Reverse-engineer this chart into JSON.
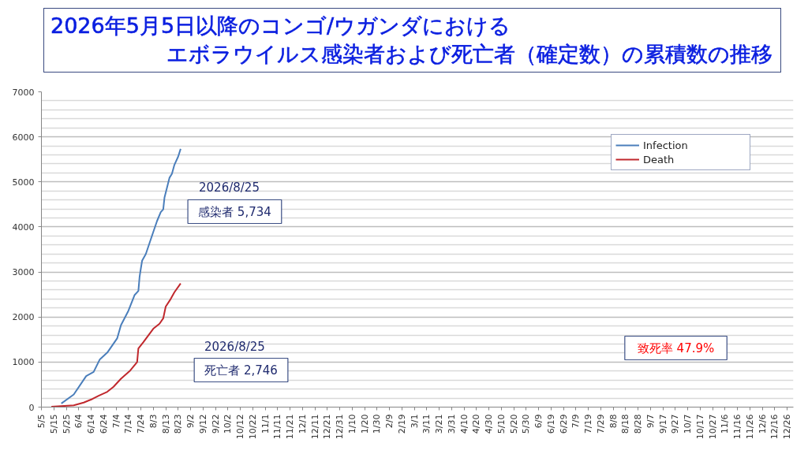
{
  "chart_data": {
    "type": "line",
    "title": "2026年5月5日以降のコンゴ/ウガンダにおけるエボラウイルス感染者および死亡者（確定数）の累積数の推移",
    "series": [
      {
        "name": "Infection",
        "color": "#4a7ebb",
        "x": [
          "2026-05-21",
          "2026-05-31",
          "2026-06-10",
          "2026-06-16",
          "2026-06-21",
          "2026-06-27",
          "2026-07-05",
          "2026-07-08",
          "2026-07-14",
          "2026-07-19",
          "2026-07-22",
          "2026-07-23",
          "2026-07-24",
          "2026-07-25",
          "2026-07-28",
          "2026-08-03",
          "2026-08-06",
          "2026-08-09",
          "2026-08-11",
          "2026-08-12",
          "2026-08-16",
          "2026-08-18",
          "2026-08-20",
          "2026-08-23",
          "2026-08-25"
        ],
        "values": [
          80,
          280,
          690,
          780,
          1060,
          1210,
          1530,
          1820,
          2140,
          2490,
          2580,
          2900,
          3080,
          3250,
          3400,
          3890,
          4130,
          4330,
          4390,
          4650,
          5090,
          5180,
          5380,
          5560,
          5734
        ]
      },
      {
        "name": "Death",
        "color": "#c0282d",
        "x": [
          "2026-05-13",
          "2026-05-31",
          "2026-06-08",
          "2026-06-15",
          "2026-06-20",
          "2026-06-27",
          "2026-07-02",
          "2026-07-08",
          "2026-07-15",
          "2026-07-21",
          "2026-07-22",
          "2026-07-26",
          "2026-08-03",
          "2026-08-08",
          "2026-08-11",
          "2026-08-13",
          "2026-08-17",
          "2026-08-20",
          "2026-08-25"
        ],
        "values": [
          10,
          40,
          100,
          180,
          250,
          340,
          450,
          630,
          800,
          1000,
          1300,
          1440,
          1740,
          1850,
          1970,
          2230,
          2400,
          2550,
          2746
        ]
      }
    ],
    "xlim": [
      "2026-05-05",
      "2027-12-31"
    ],
    "xticks": [
      {
        "value": "2026-05-05",
        "label": "5/5"
      },
      {
        "value": "2026-05-15",
        "label": "5/15"
      },
      {
        "value": "2026-05-25",
        "label": "5/25"
      },
      {
        "value": "2026-06-04",
        "label": "6/4"
      },
      {
        "value": "2026-06-14",
        "label": "6/14"
      },
      {
        "value": "2026-06-24",
        "label": "6/24"
      },
      {
        "value": "2026-07-04",
        "label": "7/4"
      },
      {
        "value": "2026-07-14",
        "label": "7/14"
      },
      {
        "value": "2026-07-24",
        "label": "7/24"
      },
      {
        "value": "2026-08-03",
        "label": "8/3"
      },
      {
        "value": "2026-08-13",
        "label": "8/13"
      },
      {
        "value": "2026-08-23",
        "label": "8/23"
      },
      {
        "value": "2026-09-02",
        "label": "9/2"
      },
      {
        "value": "2026-09-12",
        "label": "9/12"
      },
      {
        "value": "2026-09-22",
        "label": "9/22"
      },
      {
        "value": "2026-10-02",
        "label": "10/2"
      },
      {
        "value": "2026-10-12",
        "label": "10/12"
      },
      {
        "value": "2026-10-22",
        "label": "10/22"
      },
      {
        "value": "2026-11-01",
        "label": "11/1"
      },
      {
        "value": "2026-11-11",
        "label": "11/11"
      },
      {
        "value": "2026-11-21",
        "label": "11/21"
      },
      {
        "value": "2026-12-01",
        "label": "12/1"
      },
      {
        "value": "2026-12-11",
        "label": "12/11"
      },
      {
        "value": "2026-12-21",
        "label": "12/21"
      },
      {
        "value": "2026-12-31",
        "label": "12/31"
      },
      {
        "value": "2027-01-10",
        "label": "1/10"
      },
      {
        "value": "2027-01-20",
        "label": "1/20"
      },
      {
        "value": "2027-01-30",
        "label": "1/30"
      },
      {
        "value": "2027-02-09",
        "label": "2/9"
      },
      {
        "value": "2027-02-19",
        "label": "2/19"
      },
      {
        "value": "2027-03-01",
        "label": "3/1"
      },
      {
        "value": "2027-03-11",
        "label": "3/11"
      },
      {
        "value": "2027-03-21",
        "label": "3/21"
      },
      {
        "value": "2027-03-31",
        "label": "3/31"
      },
      {
        "value": "2027-04-10",
        "label": "4/10"
      },
      {
        "value": "2027-04-20",
        "label": "4/20"
      },
      {
        "value": "2027-04-30",
        "label": "4/30"
      },
      {
        "value": "2027-05-10",
        "label": "5/10"
      },
      {
        "value": "2027-05-20",
        "label": "5/20"
      },
      {
        "value": "2027-05-30",
        "label": "5/30"
      },
      {
        "value": "2027-06-09",
        "label": "6/9"
      },
      {
        "value": "2027-06-19",
        "label": "6/19"
      },
      {
        "value": "2027-06-29",
        "label": "6/29"
      },
      {
        "value": "2027-07-09",
        "label": "7/9"
      },
      {
        "value": "2027-07-19",
        "label": "7/19"
      },
      {
        "value": "2027-07-29",
        "label": "7/29"
      },
      {
        "value": "2027-08-08",
        "label": "8/8"
      },
      {
        "value": "2027-08-18",
        "label": "8/18"
      },
      {
        "value": "2027-08-28",
        "label": "8/28"
      },
      {
        "value": "2027-09-07",
        "label": "9/7"
      },
      {
        "value": "2027-09-17",
        "label": "9/17"
      },
      {
        "value": "2027-09-27",
        "label": "9/27"
      },
      {
        "value": "2027-10-07",
        "label": "10/7"
      },
      {
        "value": "2027-10-17",
        "label": "10/17"
      },
      {
        "value": "2027-10-27",
        "label": "10/27"
      },
      {
        "value": "2027-11-06",
        "label": "11/6"
      },
      {
        "value": "2027-11-16",
        "label": "11/16"
      },
      {
        "value": "2027-11-26",
        "label": "11/26"
      },
      {
        "value": "2027-12-06",
        "label": "12/6"
      },
      {
        "value": "2027-12-16",
        "label": "12/16"
      },
      {
        "value": "2027-12-26",
        "label": "12/26"
      }
    ],
    "ylim": [
      0,
      7000
    ],
    "yticks": [
      0,
      {
        "value": 200,
        "label": null
      },
      {
        "value": 400,
        "label": null
      },
      {
        "value": 600,
        "label": null
      },
      {
        "value": 800,
        "label": null
      },
      1000,
      {
        "value": 1200,
        "label": null
      },
      {
        "value": 1400,
        "label": null
      },
      {
        "value": 1600,
        "label": null
      },
      {
        "value": 1800,
        "label": null
      },
      2000,
      {
        "value": 2200,
        "label": null
      },
      {
        "value": 2400,
        "label": null
      },
      {
        "value": 2600,
        "label": null
      },
      {
        "value": 2800,
        "label": null
      },
      3000,
      {
        "value": 3200,
        "label": null
      },
      {
        "value": 3400,
        "label": null
      },
      {
        "value": 3600,
        "label": null
      },
      {
        "value": 3800,
        "label": null
      },
      4000,
      {
        "value": 4200,
        "label": null
      },
      {
        "value": 4400,
        "label": null
      },
      {
        "value": 4600,
        "label": null
      },
      {
        "value": 4800,
        "label": null
      },
      5000,
      {
        "value": 5200,
        "label": null
      },
      {
        "value": 5400,
        "label": null
      },
      {
        "value": 5600,
        "label": null
      },
      {
        "value": 5800,
        "label": null
      },
      6000,
      {
        "value": 6200,
        "label": null
      },
      {
        "value": 6400,
        "label": null
      },
      {
        "value": 6600,
        "label": null
      },
      {
        "value": 6800,
        "label": null
      },
      7000
    ],
    "grid": "y",
    "legend": "top right",
    "annotations": [
      "2026/8/25",
      "感染者 5,734",
      "2026/8/25",
      "死亡者 2,746",
      "致死率 47.9%"
    ]
  }
}
